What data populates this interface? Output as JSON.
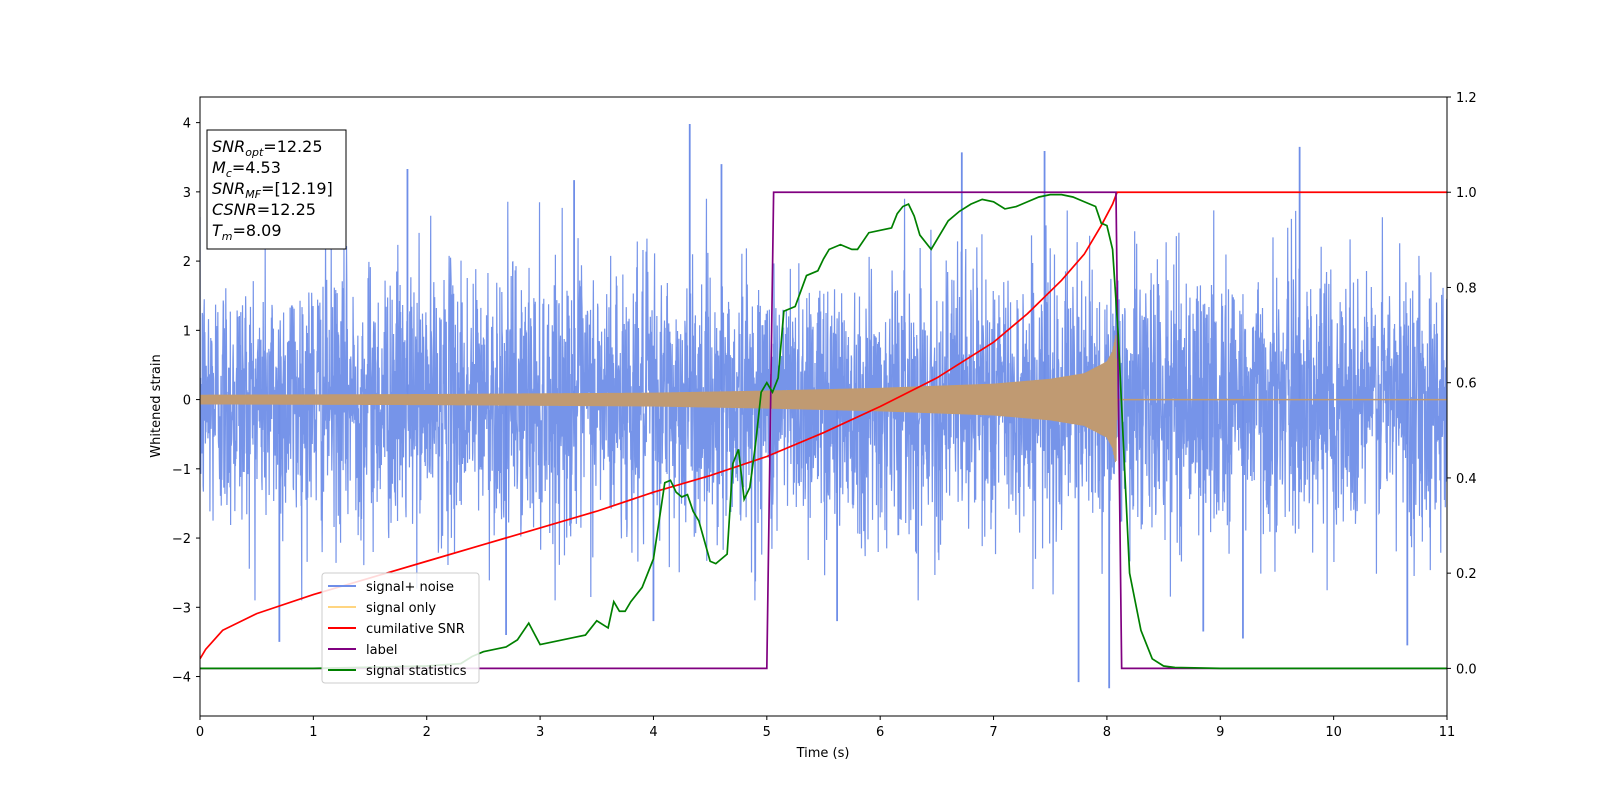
{
  "chart_data": {
    "type": "line",
    "xlabel": "Time (s)",
    "ylabel": "Whitened strain",
    "xlim": [
      0,
      11
    ],
    "ylim_left": [
      -4.57,
      4.37
    ],
    "ylim_right": [
      -0.1,
      1.2
    ],
    "x_ticks": [
      0,
      1,
      2,
      3,
      4,
      5,
      6,
      7,
      8,
      9,
      10,
      11
    ],
    "y_ticks_left": [
      -4,
      -3,
      -2,
      -1,
      0,
      1,
      2,
      3,
      4
    ],
    "y_ticks_right": [
      "0.0",
      "0.2",
      "0.4",
      "0.6",
      "0.8",
      "1.0",
      "1.2"
    ],
    "y_ticks_right_values": [
      0.0,
      0.2,
      0.4,
      0.6,
      0.8,
      1.0,
      1.2
    ],
    "legend_placement": "lower-left",
    "info_box": {
      "lines": [
        {
          "main": "SNR",
          "sub": "opt",
          "rest": "=12.25"
        },
        {
          "main": "M",
          "sub": "c",
          "rest": "=4.53"
        },
        {
          "main": "SNR",
          "sub": "MF",
          "rest": "=[12.19]"
        },
        {
          "main": "CSNR",
          "sub": "",
          "rest": "=12.25"
        },
        {
          "main": "T",
          "sub": "m",
          "rest": "=8.09"
        }
      ]
    },
    "series": [
      {
        "name": "signal+ noise",
        "color": "#6f8ee8",
        "axis": "left",
        "kind": "noise",
        "sigma": 1.0,
        "spikes": [
          [
            4.32,
            3.98
          ],
          [
            1.83,
            3.33
          ],
          [
            3.3,
            3.17
          ],
          [
            6.72,
            3.57
          ],
          [
            7.45,
            3.59
          ],
          [
            9.7,
            3.65
          ],
          [
            4.6,
            3.4
          ],
          [
            0.7,
            -3.5
          ],
          [
            7.75,
            -4.08
          ],
          [
            8.02,
            -4.17
          ],
          [
            8.85,
            -3.35
          ],
          [
            4.0,
            -3.2
          ],
          [
            5.62,
            -3.2
          ],
          [
            10.65,
            -3.55
          ],
          [
            2.7,
            -3.4
          ],
          [
            9.2,
            -3.45
          ]
        ]
      },
      {
        "name": "signal only",
        "color": "#c09a72",
        "axis": "left",
        "kind": "envelope",
        "x": [
          0,
          1,
          2,
          3,
          4,
          5,
          6,
          7,
          7.5,
          7.8,
          8.0,
          8.05,
          8.08,
          8.09
        ],
        "amp": [
          0.07,
          0.075,
          0.08,
          0.09,
          0.1,
          0.13,
          0.17,
          0.23,
          0.3,
          0.38,
          0.55,
          0.7,
          0.95,
          0.0
        ]
      },
      {
        "name": "cumilative SNR",
        "color": "#ff0000",
        "axis": "right",
        "x": [
          0,
          0.05,
          0.2,
          0.5,
          1.0,
          1.5,
          2.0,
          2.5,
          3.0,
          3.5,
          4.0,
          4.5,
          5.0,
          5.5,
          6.0,
          6.5,
          7.0,
          7.3,
          7.6,
          7.8,
          7.95,
          8.05,
          8.09,
          8.1,
          11
        ],
        "y": [
          0.02,
          0.04,
          0.08,
          0.115,
          0.155,
          0.19,
          0.225,
          0.26,
          0.295,
          0.33,
          0.37,
          0.405,
          0.445,
          0.495,
          0.55,
          0.61,
          0.685,
          0.745,
          0.815,
          0.87,
          0.93,
          0.975,
          1.0,
          1.0,
          1.0
        ]
      },
      {
        "name": "label",
        "color": "#800080",
        "axis": "right",
        "x": [
          0,
          5.0,
          5.06,
          8.08,
          8.13,
          11
        ],
        "y": [
          0.0,
          0.0,
          1.0,
          1.0,
          0.0,
          0.0
        ]
      },
      {
        "name": "signal statistics",
        "color": "#008000",
        "axis": "right",
        "x": [
          0,
          0.5,
          1.0,
          2.0,
          2.3,
          2.4,
          2.5,
          2.6,
          2.7,
          2.8,
          2.9,
          3.0,
          3.1,
          3.2,
          3.3,
          3.4,
          3.5,
          3.6,
          3.65,
          3.7,
          3.75,
          3.8,
          3.9,
          4.0,
          4.1,
          4.15,
          4.2,
          4.25,
          4.3,
          4.35,
          4.4,
          4.5,
          4.55,
          4.6,
          4.65,
          4.7,
          4.75,
          4.8,
          4.85,
          4.9,
          4.95,
          5.0,
          5.05,
          5.1,
          5.15,
          5.2,
          5.25,
          5.35,
          5.45,
          5.5,
          5.55,
          5.65,
          5.75,
          5.8,
          5.9,
          6.0,
          6.1,
          6.15,
          6.2,
          6.25,
          6.3,
          6.35,
          6.45,
          6.5,
          6.6,
          6.7,
          6.8,
          6.9,
          7.0,
          7.1,
          7.2,
          7.3,
          7.4,
          7.5,
          7.6,
          7.7,
          7.8,
          7.9,
          7.95,
          8.0,
          8.05,
          8.1,
          8.15,
          8.2,
          8.3,
          8.4,
          8.5,
          8.6,
          9.0,
          10.0,
          11.0
        ],
        "y": [
          0.0,
          0.0,
          0.0,
          0.005,
          0.01,
          0.025,
          0.035,
          0.04,
          0.045,
          0.06,
          0.095,
          0.05,
          0.055,
          0.06,
          0.065,
          0.07,
          0.1,
          0.085,
          0.14,
          0.12,
          0.12,
          0.14,
          0.17,
          0.23,
          0.39,
          0.395,
          0.37,
          0.36,
          0.365,
          0.33,
          0.31,
          0.225,
          0.22,
          0.23,
          0.24,
          0.43,
          0.46,
          0.355,
          0.38,
          0.47,
          0.58,
          0.6,
          0.58,
          0.61,
          0.75,
          0.755,
          0.76,
          0.825,
          0.835,
          0.86,
          0.88,
          0.89,
          0.88,
          0.88,
          0.915,
          0.92,
          0.925,
          0.955,
          0.97,
          0.975,
          0.95,
          0.91,
          0.88,
          0.9,
          0.94,
          0.96,
          0.975,
          0.985,
          0.98,
          0.965,
          0.97,
          0.98,
          0.99,
          0.995,
          0.995,
          0.99,
          0.98,
          0.97,
          0.935,
          0.93,
          0.88,
          0.7,
          0.45,
          0.2,
          0.08,
          0.02,
          0.005,
          0.002,
          0.0,
          0.0,
          0.0
        ]
      }
    ]
  }
}
